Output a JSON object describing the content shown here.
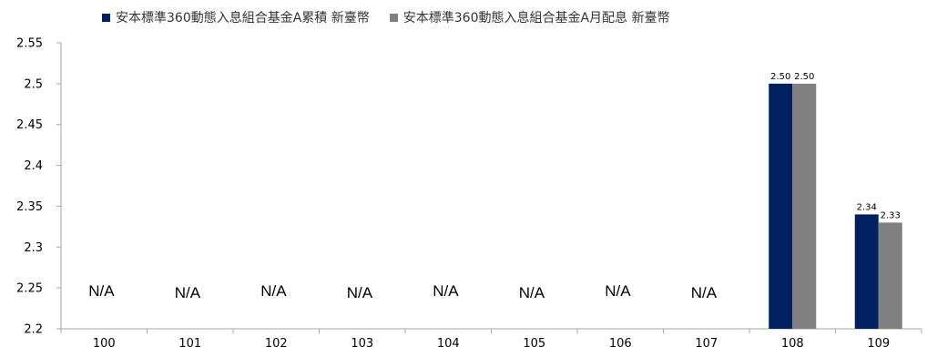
{
  "chart_data": {
    "type": "bar",
    "categories": [
      "100",
      "101",
      "102",
      "103",
      "104",
      "105",
      "106",
      "107",
      "108",
      "109"
    ],
    "series": [
      {
        "name": "安本標準360動態入息組合基金A累積 新臺幣",
        "color": "#002060",
        "values": [
          null,
          null,
          null,
          null,
          null,
          null,
          null,
          null,
          2.5,
          2.34
        ],
        "data_labels": [
          "",
          "",
          "",
          "",
          "",
          "",
          "",
          "",
          "2.50",
          "2.34"
        ]
      },
      {
        "name": "安本標準360動態入息組合基金A月配息 新臺幣",
        "color": "#808080",
        "values": [
          null,
          null,
          null,
          null,
          null,
          null,
          null,
          null,
          2.5,
          2.33
        ],
        "data_labels": [
          "",
          "",
          "",
          "",
          "",
          "",
          "",
          "",
          "2.50",
          "2.33"
        ]
      }
    ],
    "na_text": "N/A",
    "ylim": [
      2.2,
      2.55
    ],
    "yticks": [
      "2.2",
      "2.25",
      "2.3",
      "2.35",
      "2.4",
      "2.45",
      "2.5",
      "2.55"
    ],
    "legend_position": "top",
    "grid": false
  }
}
